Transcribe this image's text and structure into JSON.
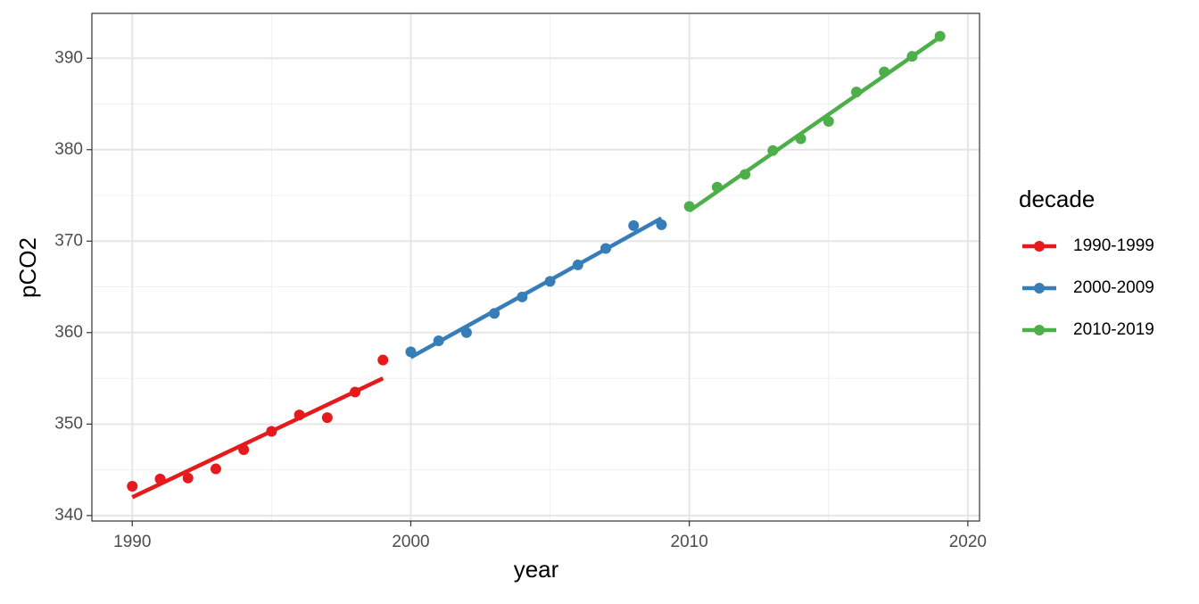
{
  "chart_data": {
    "type": "scatter",
    "x_label": "year",
    "y_label": "pCO2",
    "legend_title": "decade",
    "legend_position": "right",
    "grid": true,
    "xlim": [
      1988.55,
      2020.42
    ],
    "xticks": [
      1990,
      2000,
      2010,
      2020
    ],
    "ylim": [
      339.4,
      394.9
    ],
    "yticks": [
      340,
      350,
      360,
      370,
      380,
      390
    ],
    "series": [
      {
        "name": "1990-1999",
        "color": "#e41a1c",
        "x": [
          1990,
          1991,
          1992,
          1993,
          1994,
          1995,
          1996,
          1997,
          1998,
          1999
        ],
        "values": [
          343.2,
          344.0,
          344.1,
          345.1,
          347.2,
          349.2,
          351.0,
          350.7,
          353.5,
          357.0
        ],
        "fit_x": [
          1990,
          1999
        ],
        "fit": [
          342.0,
          355.0
        ]
      },
      {
        "name": "2000-2009",
        "color": "#377eb8",
        "x": [
          2000,
          2001,
          2002,
          2003,
          2004,
          2005,
          2006,
          2007,
          2008,
          2009
        ],
        "values": [
          357.9,
          359.1,
          360.0,
          362.1,
          363.9,
          365.6,
          367.4,
          369.2,
          371.7,
          371.8
        ],
        "fit_x": [
          2000,
          2009
        ],
        "fit": [
          357.3,
          372.5
        ]
      },
      {
        "name": "2010-2019",
        "color": "#4daf4a",
        "x": [
          2010,
          2011,
          2012,
          2013,
          2014,
          2015,
          2016,
          2017,
          2018,
          2019
        ],
        "values": [
          373.8,
          375.9,
          377.3,
          379.9,
          381.2,
          383.1,
          386.3,
          388.5,
          390.2,
          392.4
        ],
        "fit_x": [
          2010,
          2019
        ],
        "fit": [
          373.3,
          392.3
        ]
      }
    ]
  }
}
